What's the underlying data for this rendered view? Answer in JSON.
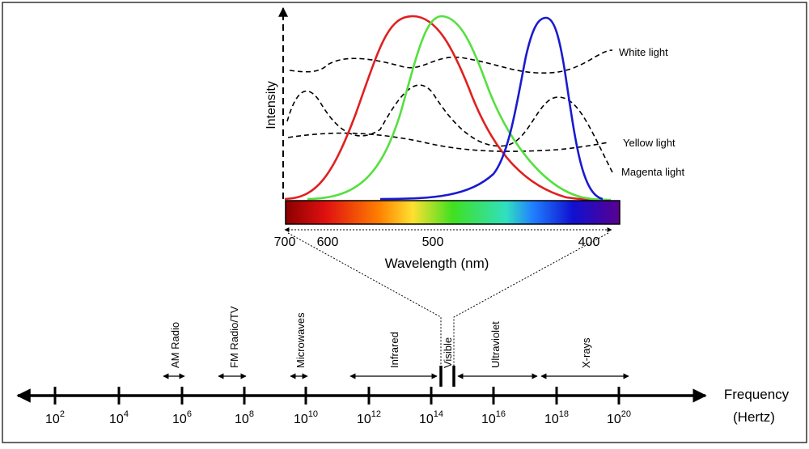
{
  "spectrum_plot": {
    "y_label": "Intensity",
    "x_label": "Wavelength (nm)",
    "x_ticks": [
      "700",
      "600",
      "500",
      "400"
    ],
    "curves": [
      {
        "name": "red-cone-curve",
        "color": "#e02020"
      },
      {
        "name": "green-cone-curve",
        "color": "#55e040"
      },
      {
        "name": "blue-cone-curve",
        "color": "#1a1ad0"
      }
    ],
    "light_labels": [
      "White light",
      "Yellow light",
      "Magenta light"
    ],
    "bar_colors": [
      "#8b0000",
      "#e01010",
      "#ff8000",
      "#ffe030",
      "#40e020",
      "#30e0c0",
      "#2080ff",
      "#1010d0",
      "#5a0090"
    ]
  },
  "em_spectrum": {
    "title_line1": "Frequency",
    "title_line2": "(Hertz)",
    "ticks": [
      {
        "base": "10",
        "exp": "2"
      },
      {
        "base": "10",
        "exp": "4"
      },
      {
        "base": "10",
        "exp": "6"
      },
      {
        "base": "10",
        "exp": "8"
      },
      {
        "base": "10",
        "exp": "10"
      },
      {
        "base": "10",
        "exp": "12"
      },
      {
        "base": "10",
        "exp": "14"
      },
      {
        "base": "10",
        "exp": "16"
      },
      {
        "base": "10",
        "exp": "18"
      },
      {
        "base": "10",
        "exp": "20"
      }
    ],
    "bands": [
      "AM Radio",
      "FM Radio/TV",
      "Microwaves",
      "Infrared",
      "Visible",
      "Ultraviolet",
      "X-rays"
    ]
  }
}
